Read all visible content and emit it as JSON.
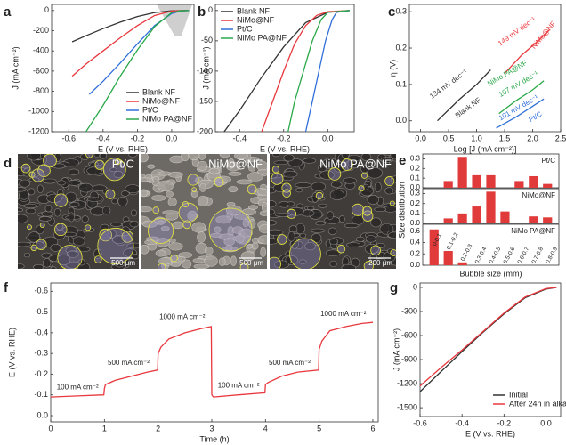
{
  "chart_data": [
    {
      "type": "line",
      "label": "a",
      "xlabel": "E (V vs. RHE)",
      "ylabel": "J (mA cm⁻²)",
      "xlim": [
        -0.7,
        0.13
      ],
      "ylim": [
        -1200,
        60
      ],
      "xticks": [
        -0.6,
        -0.4,
        -0.2,
        {
          "value": 0,
          "label": "0.0"
        }
      ],
      "yticks": [
        0,
        -200,
        -400,
        -600,
        -800,
        -1000,
        -1200
      ],
      "legend": "lower right",
      "series": [
        {
          "name": "Blank NF",
          "color": "#333333",
          "x": [
            -0.58,
            -0.5,
            -0.4,
            -0.3,
            -0.2,
            -0.1,
            0,
            0.1
          ],
          "values": [
            -310,
            -250,
            -180,
            -115,
            -60,
            -20,
            -3,
            0
          ]
        },
        {
          "name": "NiMo@NF",
          "color": "#e8383d",
          "x": [
            -0.58,
            -0.5,
            -0.4,
            -0.3,
            -0.2,
            -0.1,
            0,
            0.1
          ],
          "values": [
            -650,
            -530,
            -400,
            -270,
            -150,
            -50,
            -5,
            0
          ]
        },
        {
          "name": "Pt/C",
          "color": "#2f6fd8",
          "x": [
            -0.48,
            -0.4,
            -0.3,
            -0.2,
            -0.1,
            0,
            0.05,
            0.1
          ],
          "values": [
            -830,
            -700,
            -520,
            -330,
            -150,
            -30,
            -5,
            0
          ]
        },
        {
          "name": "NiMo PA@NF",
          "color": "#2aa84a",
          "x": [
            -0.5,
            -0.4,
            -0.3,
            -0.2,
            -0.1,
            0,
            0.05,
            0.1
          ],
          "values": [
            -1200,
            -940,
            -650,
            -390,
            -160,
            -20,
            -3,
            0
          ]
        }
      ]
    },
    {
      "type": "line",
      "label": "b",
      "xlabel": "E (V vs. RHE)",
      "ylabel": "J (mA cm⁻²)",
      "xlim": [
        -0.51,
        0.12
      ],
      "ylim": [
        -200,
        10
      ],
      "xticks": [
        -0.4,
        -0.2,
        {
          "value": 0,
          "label": "0.0"
        }
      ],
      "yticks": [
        0,
        -50,
        -100,
        -150,
        -200
      ],
      "legend": "upper left",
      "series": [
        {
          "name": "Blank NF",
          "color": "#333333",
          "x": [
            -0.47,
            -0.4,
            -0.3,
            -0.2,
            -0.1,
            0,
            0.1
          ],
          "values": [
            -200,
            -165,
            -110,
            -60,
            -20,
            -3,
            0
          ]
        },
        {
          "name": "NiMo@NF",
          "color": "#e8383d",
          "x": [
            -0.3,
            -0.25,
            -0.2,
            -0.15,
            -0.1,
            -0.05,
            0,
            0.1
          ],
          "values": [
            -200,
            -150,
            -100,
            -55,
            -25,
            -8,
            -2,
            0
          ]
        },
        {
          "name": "Pt/C",
          "color": "#2f6fd8",
          "x": [
            -0.1,
            -0.07,
            -0.04,
            -0.01,
            0.02,
            0.04,
            0.1
          ],
          "values": [
            -200,
            -150,
            -100,
            -50,
            -15,
            -3,
            0
          ]
        },
        {
          "name": "NiMo PA@NF",
          "color": "#2aa84a",
          "x": [
            -0.18,
            -0.15,
            -0.11,
            -0.07,
            -0.03,
            0,
            0.1
          ],
          "values": [
            -200,
            -150,
            -100,
            -50,
            -15,
            -3,
            0
          ]
        }
      ]
    },
    {
      "type": "line",
      "label": "c",
      "xlabel": "Log [J (mA cm⁻²)]",
      "ylabel": "η (V)",
      "xlim": [
        -0.2,
        2.5
      ],
      "ylim": [
        -0.03,
        0.32
      ],
      "xticks": [
        {
          "value": 0,
          "label": "0.0"
        },
        0.5,
        {
          "value": 1,
          "label": "1.0"
        },
        1.5,
        {
          "value": 2,
          "label": "2.0"
        },
        2.5
      ],
      "yticks": [
        {
          "value": 0,
          "label": "0.0"
        },
        0.1,
        0.2,
        0.3
      ],
      "series": [
        {
          "color": "#333333",
          "x": [
            0.3,
            0.7,
            1.0,
            1.25
          ],
          "values": [
            0.0,
            0.06,
            0.1,
            0.14
          ]
        },
        {
          "color": "#e8383d",
          "x": [
            1.5,
            1.8,
            2.1,
            2.3
          ],
          "values": [
            0.13,
            0.18,
            0.22,
            0.25
          ]
        },
        {
          "color": "#2aa84a",
          "x": [
            1.4,
            1.7,
            2.0,
            2.2
          ],
          "values": [
            0.02,
            0.055,
            0.085,
            0.11
          ]
        },
        {
          "color": "#2f6fd8",
          "x": [
            1.35,
            1.7,
            2.0,
            2.2
          ],
          "values": [
            -0.02,
            0.01,
            0.04,
            0.06
          ]
        }
      ],
      "annotations": [
        {
          "text": "134 mV dec⁻¹",
          "color": "#333333"
        },
        {
          "text": "Blank NF",
          "color": "#333333"
        },
        {
          "text": "149 mV dec⁻¹",
          "color": "#e8383d"
        },
        {
          "text": "NiMo@NF",
          "color": "#e8383d"
        },
        {
          "text": "NiMo PA@NF",
          "color": "#2aa84a"
        },
        {
          "text": "107 mV dec⁻¹",
          "color": "#2aa84a"
        },
        {
          "text": "101 mV dec⁻¹",
          "color": "#2f6fd8"
        },
        {
          "text": "Pt/C",
          "color": "#2f6fd8"
        }
      ]
    },
    {
      "type": "bar_panels",
      "label": "e",
      "ylabel": "Size distribution",
      "xlabel": "Bubble size (mm)",
      "color": "#e03a3a",
      "categories": [
        "0-0.1",
        "0.1-0.2",
        "0.2-0.3",
        "0.3-0.4",
        "0.4-0.5",
        "0.5-0.6",
        "0.6-0.7",
        "0.7-0.8",
        "0.8-0.9"
      ],
      "panels": [
        {
          "name": "Pt/C",
          "values": [
            0,
            0.07,
            0.32,
            0.13,
            0.13,
            0,
            0.07,
            0.12,
            0.04
          ],
          "ylim": [
            0,
            0.35
          ],
          "yticks": [
            {
              "value": 0,
              "label": "0.0"
            },
            0.1,
            0.2,
            0.3
          ]
        },
        {
          "name": "NiMo@NF",
          "values": [
            0,
            0.05,
            0.1,
            0.17,
            0.32,
            0.12,
            0,
            0.07,
            0.06
          ],
          "ylim": [
            0,
            0.35
          ],
          "yticks": [
            {
              "value": 0,
              "label": "0.0"
            },
            0.1,
            0.2,
            0.3
          ]
        },
        {
          "name": "NiMo PA@NF",
          "values": [
            0.63,
            0.25,
            0.05,
            0,
            0,
            0,
            0,
            0,
            0
          ],
          "ylim": [
            0,
            0.72
          ],
          "yticks": [
            {
              "value": 0,
              "label": "0.0"
            },
            0.2,
            0.4,
            0.6
          ]
        }
      ]
    },
    {
      "type": "line",
      "label": "f",
      "xlabel": "Time (h)",
      "ylabel": "E (V vs. RHE)",
      "xlim": [
        0,
        6.1
      ],
      "ylim": [
        0.03,
        -0.64
      ],
      "xticks": [
        0,
        1,
        2,
        3,
        4,
        5,
        6
      ],
      "yticks": [
        {
          "value": 0,
          "label": "0.0"
        },
        -0.1,
        -0.2,
        -0.3,
        -0.4,
        -0.5,
        -0.6
      ],
      "series": [
        {
          "color": "#e8383d",
          "x": [
            0,
            0.5,
            0.99,
            1.0,
            1.02,
            1.2,
            1.5,
            1.8,
            1.99,
            2.0,
            2.05,
            2.2,
            2.5,
            2.8,
            2.99,
            3.0,
            3.03,
            3.5,
            3.99,
            4.0,
            4.05,
            4.3,
            4.6,
            4.99,
            5.0,
            5.05,
            5.2,
            5.5,
            5.8,
            6.0
          ],
          "values": [
            -0.09,
            -0.095,
            -0.1,
            -0.13,
            -0.15,
            -0.17,
            -0.19,
            -0.21,
            -0.22,
            -0.3,
            -0.33,
            -0.37,
            -0.4,
            -0.42,
            -0.43,
            -0.1,
            -0.09,
            -0.1,
            -0.11,
            -0.15,
            -0.16,
            -0.19,
            -0.21,
            -0.22,
            -0.32,
            -0.36,
            -0.41,
            -0.43,
            -0.445,
            -0.45
          ]
        }
      ],
      "annotations": [
        {
          "text": "100 mA cm⁻²",
          "color": "#222222"
        },
        {
          "text": "500 mA cm⁻²",
          "color": "#222222"
        },
        {
          "text": "1000 mA cm⁻²",
          "color": "#222222"
        },
        {
          "text": "100 mA cm⁻²",
          "color": "#222222"
        },
        {
          "text": "500 mA cm⁻²",
          "color": "#222222"
        },
        {
          "text": "1000 mA cm⁻²",
          "color": "#222222"
        }
      ]
    },
    {
      "type": "line",
      "label": "g",
      "xlabel": "E (V vs. RHE)",
      "ylabel": "J (mA cm⁻²)",
      "xlim": [
        -0.6,
        0.07
      ],
      "ylim": [
        -1610,
        55
      ],
      "xticks": [
        -0.6,
        -0.4,
        -0.2,
        {
          "value": 0,
          "label": "0.0"
        }
      ],
      "yticks": [
        0,
        -300,
        -600,
        -900,
        -1200,
        -1500
      ],
      "legend": "lower right",
      "series": [
        {
          "name": "Initial",
          "color": "#333333",
          "x": [
            -0.6,
            -0.5,
            -0.4,
            -0.3,
            -0.2,
            -0.1,
            0,
            0.05
          ],
          "values": [
            -1300,
            -1050,
            -800,
            -560,
            -330,
            -130,
            -20,
            0
          ]
        },
        {
          "name": "After 24h in alkaline",
          "color": "#e8383d",
          "x": [
            -0.6,
            -0.5,
            -0.4,
            -0.3,
            -0.2,
            -0.1,
            0,
            0.05
          ],
          "values": [
            -1230,
            -1000,
            -780,
            -550,
            -320,
            -120,
            -15,
            0
          ]
        }
      ]
    }
  ],
  "image_panel": {
    "label": "d",
    "images": [
      {
        "caption": "Pt/C",
        "scale_bar": "500 μm"
      },
      {
        "caption": "NiMo@NF",
        "scale_bar": "500 μm"
      },
      {
        "caption": "NiMo PA@NF",
        "scale_bar": "200 μm"
      }
    ]
  }
}
